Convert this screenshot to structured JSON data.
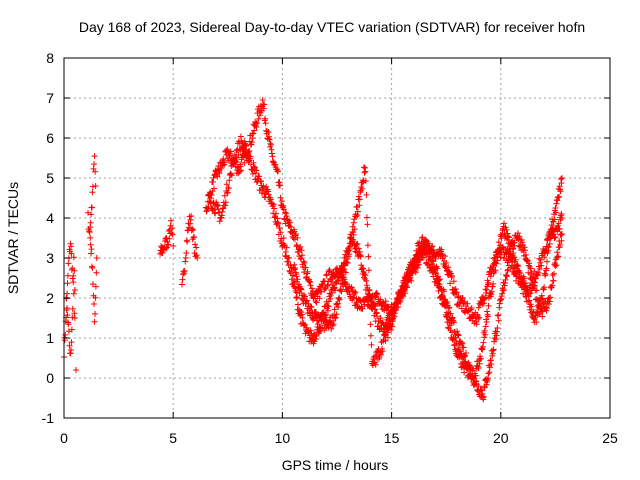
{
  "chart_data": {
    "type": "scatter",
    "title": "Day 168 of 2023, Sidereal Day-to-day VTEC variation (SDTVAR) for receiver hofn",
    "xlabel": "GPS time / hours",
    "ylabel": "SDTVAR / TECUs",
    "xlim": [
      0,
      25
    ],
    "ylim": [
      -1,
      8
    ],
    "xticks": [
      "0",
      "5",
      "10",
      "15",
      "20",
      "25"
    ],
    "yticks": [
      "-1",
      "0",
      "1",
      "2",
      "3",
      "4",
      "5",
      "6",
      "7",
      "8"
    ],
    "grid": true,
    "marker": "+",
    "marker_color": "#ff0000",
    "series": [
      {
        "name": "hofn",
        "segments": [
          {
            "x": [
              0.0,
              0.1,
              0.2,
              0.3,
              0.4,
              0.5
            ],
            "y": [
              0.7,
              1.5,
              2.8,
              3.4,
              2.5,
              1.5
            ]
          },
          {
            "x": [
              0.1,
              0.2,
              0.3,
              0.4,
              0.45,
              0.5
            ],
            "y": [
              2.0,
              1.2,
              0.5,
              1.8,
              3.0,
              2.2
            ]
          },
          {
            "x": [
              0.55
            ],
            "y": [
              0.2
            ]
          },
          {
            "x": [
              1.1,
              1.2,
              1.3,
              1.35,
              1.4,
              1.5
            ],
            "y": [
              4.0,
              3.5,
              2.8,
              2.0,
              1.4,
              3.0
            ]
          },
          {
            "x": [
              1.2,
              1.3,
              1.35,
              1.4,
              1.45
            ],
            "y": [
              3.8,
              4.5,
              5.1,
              5.5,
              4.8
            ]
          },
          {
            "x": [
              4.4,
              4.6,
              4.8,
              4.9,
              5.0
            ],
            "y": [
              3.1,
              3.3,
              3.5,
              3.9,
              3.3
            ]
          },
          {
            "x": [
              5.4,
              5.5,
              5.6,
              5.7,
              5.8,
              6.0,
              6.1
            ],
            "y": [
              2.2,
              2.7,
              3.3,
              3.8,
              4.0,
              3.2,
              3.0
            ]
          },
          {
            "x": [
              6.5,
              6.8,
              7.0,
              7.2,
              7.5,
              7.8,
              8.0,
              8.3,
              8.6,
              8.9,
              9.1,
              9.3,
              9.5,
              9.8,
              10.0,
              10.3,
              10.6,
              10.9,
              11.2,
              11.5,
              11.8,
              12.1,
              12.4,
              12.7,
              13.0,
              13.3,
              13.6,
              14.0,
              14.3,
              14.6,
              15.0,
              15.3,
              15.6,
              15.9,
              16.2,
              16.5,
              16.8,
              17.1,
              17.4,
              17.7,
              18.0,
              18.3,
              18.6,
              18.9,
              19.2,
              19.5,
              19.8,
              20.1,
              20.4,
              20.7,
              21.0,
              21.3,
              21.6,
              21.9,
              22.2,
              22.5,
              22.8
            ],
            "y": [
              4.2,
              4.8,
              5.1,
              5.3,
              5.6,
              5.4,
              5.2,
              5.6,
              6.0,
              6.6,
              6.9,
              6.2,
              5.6,
              5.0,
              4.2,
              3.8,
              3.5,
              3.0,
              2.4,
              2.0,
              2.2,
              2.5,
              2.7,
              2.5,
              2.3,
              2.0,
              1.8,
              1.9,
              2.0,
              1.8,
              1.7,
              2.0,
              2.4,
              2.7,
              3.0,
              3.3,
              3.2,
              3.1,
              3.0,
              2.5,
              2.0,
              1.8,
              1.6,
              1.5,
              2.0,
              2.6,
              3.0,
              3.2,
              3.0,
              2.6,
              2.4,
              2.2,
              2.6,
              3.0,
              3.5,
              3.7,
              4.0
            ]
          },
          {
            "x": [
              6.6,
              6.9,
              7.2,
              7.5,
              7.8,
              8.1,
              8.4,
              8.7,
              9.0,
              9.3,
              9.6,
              9.9,
              10.2,
              10.5,
              10.8,
              11.1,
              11.4,
              11.7,
              12.0,
              12.3,
              12.6,
              12.9,
              13.2,
              13.5,
              13.8,
              14.1,
              14.4,
              14.7,
              15.0,
              15.3,
              15.6,
              15.9,
              16.2,
              16.5,
              16.8,
              17.1,
              17.4,
              17.7,
              18.0,
              18.3,
              18.6,
              18.9,
              19.2,
              19.5,
              19.8,
              20.1,
              20.4,
              20.7,
              21.0,
              21.3,
              21.6,
              21.9,
              22.2,
              22.5,
              22.8
            ],
            "y": [
              4.5,
              4.3,
              4.0,
              4.8,
              5.5,
              5.9,
              5.6,
              5.2,
              4.8,
              4.6,
              4.2,
              3.6,
              3.1,
              2.4,
              1.6,
              1.1,
              1.0,
              1.3,
              1.7,
              2.2,
              2.6,
              3.0,
              3.5,
              3.1,
              2.4,
              1.8,
              1.4,
              1.3,
              1.5,
              1.9,
              2.3,
              2.8,
              3.2,
              3.4,
              3.1,
              2.6,
              2.0,
              1.5,
              1.0,
              0.6,
              0.2,
              -0.2,
              -0.4,
              0.3,
              1.2,
              2.2,
              3.0,
              3.6,
              3.3,
              2.7,
              2.1,
              1.7,
              1.9,
              2.8,
              3.6
            ]
          },
          {
            "x": [
              10.5,
              10.8,
              11.1,
              11.4,
              11.7,
              12.0,
              12.3,
              12.6,
              12.9,
              13.2,
              13.5,
              13.8,
              14.1,
              14.4,
              14.7,
              15.0,
              15.3,
              15.6,
              15.9,
              16.2,
              16.5,
              16.8,
              17.1,
              17.4,
              17.7,
              18.0,
              18.3,
              18.6,
              18.9,
              19.2,
              19.5,
              19.8,
              20.1,
              20.4,
              20.7,
              21.0,
              21.3,
              21.6,
              21.9,
              22.2,
              22.5,
              22.8
            ],
            "y": [
              2.8,
              2.2,
              1.8,
              1.6,
              1.4,
              1.3,
              1.4,
              2.0,
              2.8,
              3.6,
              4.4,
              5.3,
              0.3,
              0.6,
              1.0,
              1.4,
              2.0,
              2.2,
              2.6,
              2.9,
              3.1,
              2.8,
              2.4,
              1.8,
              1.2,
              0.6,
              0.3,
              0.1,
              0.2,
              0.9,
              2.0,
              3.0,
              3.8,
              3.4,
              2.8,
              2.3,
              1.9,
              1.4,
              2.0,
              3.4,
              4.2,
              5.0
            ]
          }
        ]
      }
    ]
  }
}
